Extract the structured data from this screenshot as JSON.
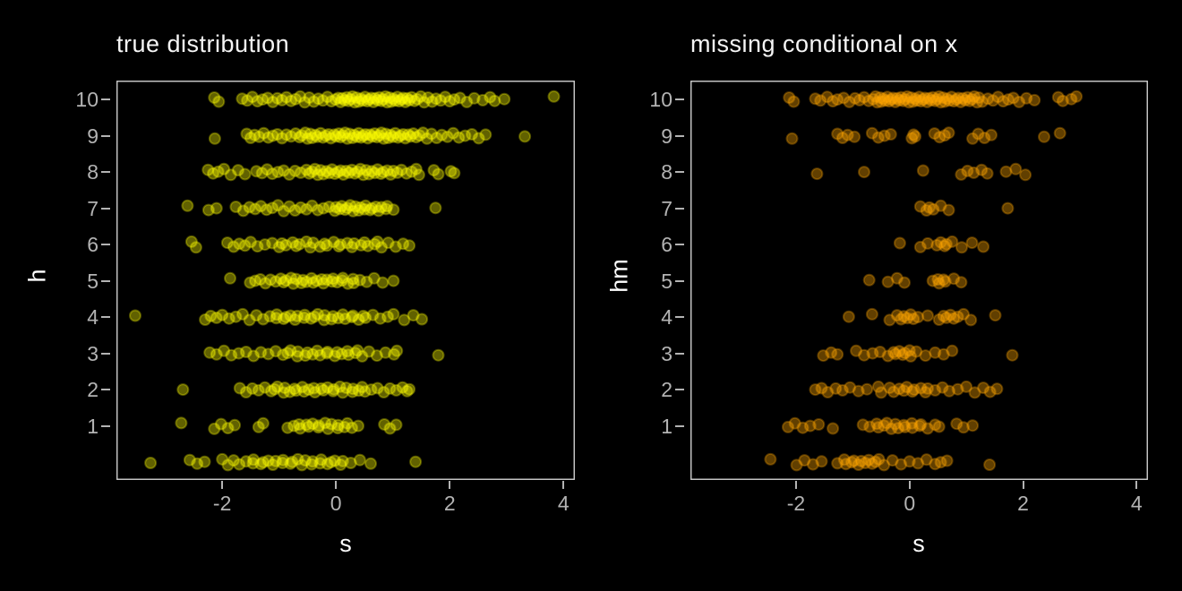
{
  "styles": {
    "background": "#000000",
    "title_color": "#f5f5f5",
    "axis_text_color": "#b3b3b3",
    "axis_title_color": "#ffffff",
    "panel_border_color": "#cfcfcf",
    "tick_color": "#b3b3b3",
    "left_point_color": "#ffff00",
    "right_point_color": "#ffa500"
  },
  "jitter_cycle": [
    0.05,
    -0.06,
    0.02,
    -0.03,
    0.07,
    -0.05,
    0.0,
    0.04,
    -0.07,
    0.03,
    -0.02,
    0.06,
    -0.04,
    0.01,
    0.08,
    -0.08
  ],
  "chart_data": [
    {
      "type": "scatter",
      "title": "true distribution",
      "xlabel": "s",
      "ylabel": "h",
      "xlim": [
        -3.86,
        4.2
      ],
      "ylim": [
        -0.49,
        10.52
      ],
      "x_ticks": [
        -2,
        0,
        2,
        4
      ],
      "x_tick_labels": [
        "-2",
        "0",
        "2",
        "4"
      ],
      "y_ticks": [
        1,
        2,
        3,
        4,
        5,
        6,
        7,
        8,
        9,
        10
      ],
      "y_tick_labels": [
        "1",
        "2",
        "3",
        "4",
        "5",
        "6",
        "7",
        "8",
        "9",
        "10"
      ],
      "grid": "off",
      "legend": "none",
      "point_color": "#ffff00",
      "point_alpha": 0.38,
      "series": [
        {
          "h": 10,
          "s_values": [
            -2.14,
            -2.06,
            -1.65,
            -1.56,
            -1.47,
            -1.38,
            -1.29,
            -1.2,
            -1.11,
            -1.03,
            -0.95,
            -0.87,
            -0.79,
            -0.71,
            -0.63,
            -0.55,
            -0.47,
            -0.39,
            -0.31,
            -0.23,
            -0.15,
            -0.08,
            -0.01,
            0.04,
            0.08,
            0.11,
            0.15,
            0.19,
            0.22,
            0.26,
            0.29,
            0.33,
            0.36,
            0.4,
            0.44,
            0.47,
            0.51,
            0.55,
            0.58,
            0.62,
            0.66,
            0.69,
            0.73,
            0.76,
            0.8,
            0.83,
            0.87,
            0.9,
            0.94,
            0.97,
            1.01,
            1.04,
            1.08,
            1.11,
            1.15,
            1.18,
            1.22,
            1.25,
            1.29,
            1.33,
            1.38,
            1.43,
            1.49,
            1.55,
            1.62,
            1.69,
            1.76,
            1.84,
            1.92,
            2.0,
            2.08,
            2.18,
            2.3,
            2.43,
            2.58,
            2.71,
            2.79,
            2.96,
            3.83
          ]
        },
        {
          "h": 9,
          "s_values": [
            -2.13,
            -1.57,
            -1.5,
            -1.43,
            -1.35,
            -1.27,
            -1.19,
            -1.11,
            -1.03,
            -0.95,
            -0.87,
            -0.79,
            -0.71,
            -0.64,
            -0.6,
            -0.54,
            -0.5,
            -0.45,
            -0.42,
            -0.36,
            -0.33,
            -0.27,
            -0.23,
            -0.18,
            -0.13,
            -0.09,
            -0.03,
            0.0,
            0.05,
            0.08,
            0.12,
            0.16,
            0.2,
            0.24,
            0.29,
            0.32,
            0.37,
            0.4,
            0.44,
            0.48,
            0.52,
            0.56,
            0.6,
            0.64,
            0.68,
            0.72,
            0.76,
            0.8,
            0.84,
            0.88,
            0.92,
            0.96,
            1.0,
            1.04,
            1.09,
            1.13,
            1.18,
            1.22,
            1.27,
            1.31,
            1.36,
            1.41,
            1.47,
            1.53,
            1.6,
            1.68,
            1.77,
            1.86,
            1.96,
            2.06,
            2.16,
            2.27,
            2.39,
            2.51,
            2.63,
            3.32
          ]
        },
        {
          "h": 8,
          "s_values": [
            -2.25,
            -2.16,
            -2.07,
            -1.97,
            -1.85,
            -1.72,
            -1.6,
            -1.4,
            -1.3,
            -1.21,
            -1.12,
            -1.02,
            -0.92,
            -0.82,
            -0.72,
            -0.62,
            -0.52,
            -0.47,
            -0.42,
            -0.37,
            -0.32,
            -0.27,
            -0.22,
            -0.17,
            -0.12,
            -0.07,
            -0.02,
            0.03,
            0.08,
            0.13,
            0.18,
            0.23,
            0.28,
            0.33,
            0.38,
            0.43,
            0.48,
            0.53,
            0.58,
            0.63,
            0.68,
            0.73,
            0.79,
            0.83,
            0.9,
            0.96,
            1.01,
            1.08,
            1.15,
            1.24,
            1.33,
            1.41,
            1.46,
            1.72,
            1.8,
            2.02,
            2.08
          ]
        },
        {
          "h": 7,
          "s_values": [
            -2.61,
            -2.24,
            -2.1,
            -1.76,
            -1.63,
            -1.52,
            -1.42,
            -1.32,
            -1.22,
            -1.12,
            -1.02,
            -0.92,
            -0.82,
            -0.72,
            -0.62,
            -0.52,
            -0.42,
            -0.32,
            -0.22,
            -0.12,
            -0.02,
            0.0,
            0.07,
            0.1,
            0.16,
            0.2,
            0.25,
            0.3,
            0.34,
            0.4,
            0.43,
            0.5,
            0.52,
            0.6,
            0.63,
            0.7,
            0.75,
            0.8,
            0.88,
            0.9,
            1.01,
            1.75
          ]
        },
        {
          "h": 6,
          "s_values": [
            -2.54,
            -2.46,
            -1.91,
            -1.8,
            -1.7,
            -1.6,
            -1.5,
            -1.38,
            -1.25,
            -1.12,
            -1.0,
            -0.95,
            -0.88,
            -0.76,
            -0.7,
            -0.64,
            -0.52,
            -0.45,
            -0.4,
            -0.28,
            -0.2,
            -0.16,
            -0.04,
            0.05,
            0.08,
            0.2,
            0.28,
            0.32,
            0.44,
            0.5,
            0.56,
            0.68,
            0.73,
            0.8,
            0.92,
            1.05,
            1.18,
            1.29
          ]
        },
        {
          "h": 5,
          "s_values": [
            -1.86,
            -1.51,
            -1.42,
            -1.33,
            -1.24,
            -1.15,
            -1.06,
            -0.97,
            -0.92,
            -0.88,
            -0.79,
            -0.75,
            -0.7,
            -0.61,
            -0.58,
            -0.52,
            -0.43,
            -0.4,
            -0.34,
            -0.25,
            -0.22,
            -0.16,
            -0.07,
            -0.05,
            0.02,
            0.11,
            0.12,
            0.21,
            0.3,
            0.31,
            0.42,
            0.54,
            0.67,
            0.82,
            1.01
          ]
        },
        {
          "h": 4,
          "s_values": [
            -3.53,
            -2.3,
            -2.2,
            -2.1,
            -2.0,
            -1.88,
            -1.76,
            -1.64,
            -1.52,
            -1.4,
            -1.28,
            -1.16,
            -1.05,
            -1.04,
            -0.92,
            -0.88,
            -0.8,
            -0.72,
            -0.68,
            -0.56,
            -0.55,
            -0.44,
            -0.38,
            -0.32,
            -0.21,
            -0.2,
            -0.08,
            -0.05,
            0.04,
            0.12,
            0.16,
            0.28,
            0.3,
            0.4,
            0.48,
            0.52,
            0.65,
            0.78,
            0.91,
            1.01,
            1.2,
            1.36,
            1.51
          ]
        },
        {
          "h": 3,
          "s_values": [
            -2.22,
            -2.1,
            -1.97,
            -1.84,
            -1.71,
            -1.58,
            -1.45,
            -1.32,
            -1.19,
            -1.06,
            -0.93,
            -0.85,
            -0.8,
            -0.68,
            -0.67,
            -0.54,
            -0.5,
            -0.41,
            -0.33,
            -0.28,
            -0.16,
            -0.15,
            -0.02,
            0.02,
            0.1,
            0.2,
            0.22,
            0.34,
            0.38,
            0.46,
            0.58,
            0.72,
            0.87,
            1.02,
            1.07,
            1.8
          ]
        },
        {
          "h": 2,
          "s_values": [
            -2.69,
            -1.69,
            -1.58,
            -1.47,
            -1.36,
            -1.25,
            -1.14,
            -1.08,
            -1.03,
            -0.92,
            -0.9,
            -0.81,
            -0.73,
            -0.7,
            -0.59,
            -0.56,
            -0.48,
            -0.39,
            -0.37,
            -0.26,
            -0.22,
            -0.15,
            -0.05,
            -0.04,
            0.07,
            0.12,
            0.18,
            0.29,
            0.3,
            0.4,
            0.46,
            0.51,
            0.62,
            0.73,
            0.84,
            0.95,
            1.06,
            1.17,
            1.25,
            1.29
          ]
        },
        {
          "h": 1,
          "s_values": [
            -2.72,
            -2.14,
            -2.02,
            -1.9,
            -1.78,
            -1.36,
            -1.28,
            -0.85,
            -0.74,
            -0.65,
            -0.63,
            -0.52,
            -0.48,
            -0.41,
            -0.31,
            -0.3,
            -0.19,
            -0.14,
            -0.08,
            0.03,
            0.04,
            0.15,
            0.2,
            0.28,
            0.39,
            0.85,
            0.95,
            1.06
          ]
        },
        {
          "h": 0,
          "s_values": [
            -3.26,
            -2.57,
            -2.44,
            -2.31,
            -2.0,
            -1.9,
            -1.8,
            -1.7,
            -1.58,
            -1.46,
            -1.45,
            -1.32,
            -1.28,
            -1.19,
            -1.11,
            -1.06,
            -0.94,
            -0.93,
            -0.8,
            -0.77,
            -0.67,
            -0.6,
            -0.54,
            -0.43,
            -0.41,
            -0.28,
            -0.26,
            -0.15,
            -0.09,
            -0.02,
            0.08,
            0.12,
            0.26,
            0.42,
            0.61,
            1.4
          ]
        }
      ]
    },
    {
      "type": "scatter",
      "title": "missing conditional on x",
      "xlabel": "s",
      "ylabel": "hm",
      "xlim": [
        -3.86,
        4.2
      ],
      "ylim": [
        -0.49,
        10.52
      ],
      "x_ticks": [
        -2,
        0,
        2,
        4
      ],
      "x_tick_labels": [
        "-2",
        "0",
        "2",
        "4"
      ],
      "y_ticks": [
        1,
        2,
        3,
        4,
        5,
        6,
        7,
        8,
        9,
        10
      ],
      "y_tick_labels": [
        "1",
        "2",
        "3",
        "4",
        "5",
        "6",
        "7",
        "8",
        "9",
        "10"
      ],
      "grid": "off",
      "legend": "none",
      "point_color": "#ffa500",
      "point_alpha": 0.38,
      "series": [
        {
          "h": 10,
          "s_values": [
            -2.12,
            -2.04,
            -1.66,
            -1.57,
            -1.45,
            -1.35,
            -1.27,
            -1.16,
            -1.06,
            -0.96,
            -0.88,
            -0.8,
            -0.72,
            -0.64,
            -0.6,
            -0.57,
            -0.52,
            -0.5,
            -0.46,
            -0.43,
            -0.39,
            -0.36,
            -0.32,
            -0.29,
            -0.25,
            -0.22,
            -0.18,
            -0.15,
            -0.11,
            -0.08,
            -0.04,
            -0.01,
            0.03,
            0.06,
            0.1,
            0.13,
            0.17,
            0.2,
            0.24,
            0.27,
            0.31,
            0.34,
            0.38,
            0.41,
            0.45,
            0.48,
            0.52,
            0.55,
            0.59,
            0.62,
            0.66,
            0.7,
            0.74,
            0.78,
            0.82,
            0.86,
            0.9,
            0.94,
            0.98,
            1.02,
            1.06,
            1.1,
            1.14,
            1.19,
            1.22,
            1.28,
            1.38,
            1.47,
            1.56,
            1.65,
            1.74,
            1.83,
            1.93,
            2.06,
            2.2,
            2.62,
            2.7,
            2.85,
            2.94
          ]
        },
        {
          "h": 9,
          "s_values": [
            -2.07,
            -1.27,
            -1.18,
            -1.09,
            -0.97,
            -0.66,
            -0.55,
            -0.44,
            -0.33,
            0.04,
            0.07,
            0.1,
            0.44,
            0.53,
            0.62,
            0.69,
            1.11,
            1.21,
            1.32,
            1.44,
            2.37,
            2.65
          ]
        },
        {
          "h": 8,
          "s_values": [
            -1.63,
            -0.8,
            0.24,
            0.91,
            1.02,
            1.13,
            1.27,
            1.37,
            1.7,
            1.87,
            2.04
          ]
        },
        {
          "h": 7,
          "s_values": [
            0.19,
            0.3,
            0.35,
            0.42,
            0.55,
            0.69,
            1.73
          ]
        },
        {
          "h": 6,
          "s_values": [
            -0.17,
            0.19,
            0.32,
            0.48,
            0.55,
            0.62,
            0.65,
            0.75,
            0.92,
            1.1,
            1.3
          ]
        },
        {
          "h": 5,
          "s_values": [
            -0.71,
            -0.38,
            -0.22,
            -0.09,
            0.41,
            0.5,
            0.52,
            0.6,
            0.63,
            0.78,
            0.91
          ]
        },
        {
          "h": 4,
          "s_values": [
            -1.07,
            -0.66,
            -0.35,
            -0.22,
            -0.15,
            -0.1,
            -0.04,
            0.02,
            0.07,
            0.15,
            0.32,
            0.52,
            0.6,
            0.65,
            0.72,
            0.78,
            0.85,
            0.95,
            1.08,
            1.51
          ]
        },
        {
          "h": 3,
          "s_values": [
            -1.52,
            -1.38,
            -1.27,
            -0.94,
            -0.8,
            -0.65,
            -0.52,
            -0.38,
            -0.28,
            -0.25,
            -0.18,
            -0.12,
            -0.08,
            0.0,
            0.02,
            0.12,
            0.28,
            0.45,
            0.6,
            0.75,
            1.81
          ]
        },
        {
          "h": 2,
          "s_values": [
            -1.66,
            -1.55,
            -1.44,
            -1.3,
            -1.18,
            -1.05,
            -0.9,
            -0.75,
            -0.55,
            -0.5,
            -0.35,
            -0.28,
            -0.18,
            -0.1,
            -0.05,
            0.05,
            0.08,
            0.2,
            0.28,
            0.32,
            0.45,
            0.58,
            0.7,
            0.85,
            1.0,
            1.15,
            1.3,
            1.42,
            1.54
          ]
        },
        {
          "h": 1,
          "s_values": [
            -2.14,
            -2.02,
            -1.88,
            -1.75,
            -1.6,
            -1.35,
            -0.82,
            -0.7,
            -0.58,
            -0.55,
            -0.45,
            -0.4,
            -0.32,
            -0.25,
            -0.2,
            -0.1,
            -0.08,
            0.04,
            0.05,
            0.18,
            0.2,
            0.32,
            0.45,
            0.52,
            0.83,
            0.95,
            1.11
          ]
        },
        {
          "h": 0,
          "s_values": [
            -2.45,
            -1.99,
            -1.85,
            -1.7,
            -1.55,
            -1.27,
            -1.15,
            -1.12,
            -1.02,
            -0.98,
            -0.9,
            -0.85,
            -0.78,
            -0.72,
            -0.66,
            -0.6,
            -0.54,
            -0.45,
            -0.3,
            -0.15,
            0.0,
            0.15,
            0.3,
            0.45,
            0.55,
            0.66,
            1.41
          ]
        }
      ]
    }
  ]
}
